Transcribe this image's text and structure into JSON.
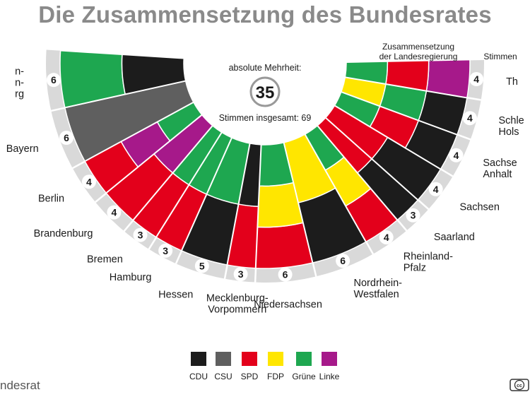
{
  "title": "Die Zusammensetzung des Bundesrates",
  "majority_label": "absolute Mehrheit:",
  "majority_value": "35",
  "total_label": "Stimmen insgesamt: 69",
  "header_government": [
    "Zusammensetzung",
    "der Landesregierung"
  ],
  "header_votes": "Stimmen",
  "source": "ndesrat",
  "cc_icon": "cc-license-icon",
  "chart_data": {
    "type": "semicircle-parliament",
    "title": "Die Zusammensetzung des Bundesrates",
    "total_votes": 69,
    "absolute_majority": 35,
    "parties": [
      {
        "key": "CDU",
        "label": "CDU",
        "color": "#1c1c1c"
      },
      {
        "key": "CSU",
        "label": "CSU",
        "color": "#5f5f5f"
      },
      {
        "key": "SPD",
        "label": "SPD",
        "color": "#e3001b"
      },
      {
        "key": "FDP",
        "label": "FDP",
        "color": "#ffe600"
      },
      {
        "key": "Gruene",
        "label": "Grüne",
        "color": "#1ea750"
      },
      {
        "key": "Linke",
        "label": "Linke",
        "color": "#a6198a"
      }
    ],
    "states": [
      {
        "name": [
          "n-",
          "n-",
          "rg"
        ],
        "votes": 6,
        "government": [
          "Gruene",
          "CDU"
        ]
      },
      {
        "name": [
          "Bayern"
        ],
        "votes": 6,
        "government": [
          "CSU"
        ]
      },
      {
        "name": [
          "Berlin"
        ],
        "votes": 4,
        "government": [
          "SPD",
          "Linke",
          "Gruene"
        ]
      },
      {
        "name": [
          "Brandenburg"
        ],
        "votes": 4,
        "government": [
          "SPD",
          "Linke"
        ]
      },
      {
        "name": [
          "Bremen"
        ],
        "votes": 3,
        "government": [
          "SPD",
          "Gruene"
        ]
      },
      {
        "name": [
          "Hamburg"
        ],
        "votes": 3,
        "government": [
          "SPD",
          "Gruene"
        ]
      },
      {
        "name": [
          "Hessen"
        ],
        "votes": 5,
        "government": [
          "CDU",
          "Gruene"
        ]
      },
      {
        "name": [
          "Mecklenburg-",
          "Vorpommern"
        ],
        "votes": 3,
        "government": [
          "SPD",
          "CDU"
        ]
      },
      {
        "name": [
          "Niedersachsen"
        ],
        "votes": 6,
        "government": [
          "SPD",
          "FDP",
          "Gruene"
        ]
      },
      {
        "name": [
          "Nordrhein-",
          "Westfalen"
        ],
        "votes": 6,
        "government": [
          "CDU",
          "FDP"
        ]
      },
      {
        "name": [
          "Rheinland-",
          "Pfalz"
        ],
        "votes": 4,
        "government": [
          "SPD",
          "FDP",
          "Gruene"
        ]
      },
      {
        "name": [
          "Saarland"
        ],
        "votes": 3,
        "government": [
          "CDU",
          "SPD"
        ]
      },
      {
        "name": [
          "Sachsen"
        ],
        "votes": 4,
        "government": [
          "CDU",
          "SPD"
        ]
      },
      {
        "name": [
          "Sachse",
          "Anhalt"
        ],
        "votes": 4,
        "government": [
          "CDU",
          "SPD",
          "Gruene"
        ]
      },
      {
        "name": [
          "Schle",
          "Hols"
        ],
        "votes": 4,
        "government": [
          "CDU",
          "Gruene",
          "FDP"
        ]
      },
      {
        "name": [
          "Th"
        ],
        "votes": 4,
        "government": [
          "Linke",
          "SPD",
          "Gruene"
        ]
      }
    ]
  }
}
